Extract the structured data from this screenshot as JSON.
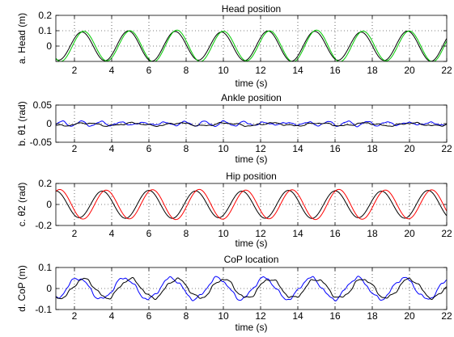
{
  "chart_data": [
    {
      "type": "line",
      "title": "Head position",
      "xlabel": "time (s)",
      "ylabel": "a. Head (m)",
      "xlim": [
        1,
        22
      ],
      "ylim": [
        -0.1,
        0.2
      ],
      "xticks": [
        2,
        4,
        6,
        8,
        10,
        12,
        14,
        16,
        18,
        20,
        22
      ],
      "yticks": [
        -0.1,
        0,
        0.1,
        0.2
      ],
      "ytick_labels": [
        "",
        "0",
        "0.1",
        "0.2"
      ],
      "grid": "dotted",
      "series": [
        {
          "color": "#000000",
          "style": "sine",
          "amplitude": 0.095,
          "period": 2.5,
          "peak_time": 2.4,
          "offset": 0.0
        },
        {
          "color": "#00cc00",
          "style": "sine",
          "amplitude": 0.1,
          "period": 2.5,
          "peak_time": 2.5,
          "offset": 0.0
        }
      ]
    },
    {
      "type": "line",
      "title": "Ankle position",
      "xlabel": "time (s)",
      "ylabel": "b. θ1 (rad)",
      "xlim": [
        1,
        22
      ],
      "ylim": [
        -0.05,
        0.05
      ],
      "xticks": [
        2,
        4,
        6,
        8,
        10,
        12,
        14,
        16,
        18,
        20,
        22
      ],
      "yticks": [
        -0.05,
        0,
        0.05
      ],
      "ytick_labels": [
        "-0.05",
        "0",
        "0.05"
      ],
      "grid": "dotted",
      "series": [
        {
          "color": "#0000ff",
          "style": "noise",
          "amplitude": 0.008,
          "period": 1.1,
          "peak_time": 1.0,
          "offset": 0.0
        },
        {
          "color": "#000000",
          "style": "noise",
          "amplitude": 0.006,
          "period": 2.5,
          "peak_time": 2.0,
          "offset": -0.002
        }
      ]
    },
    {
      "type": "line",
      "title": "Hip position",
      "xlabel": "time (s)",
      "ylabel": "c. θ2 (rad)",
      "xlim": [
        1,
        22
      ],
      "ylim": [
        -0.2,
        0.2
      ],
      "xticks": [
        2,
        4,
        6,
        8,
        10,
        12,
        14,
        16,
        18,
        20,
        22
      ],
      "yticks": [
        -0.2,
        0,
        0.2
      ],
      "ytick_labels": [
        "-0.2",
        "0",
        "0.2"
      ],
      "grid": "dotted",
      "series": [
        {
          "color": "#000000",
          "style": "sine",
          "amplitude": 0.13,
          "period": 2.5,
          "peak_time": 3.5,
          "offset": 0.0
        },
        {
          "color": "#ff0000",
          "style": "sine",
          "amplitude": 0.14,
          "period": 2.5,
          "peak_time": 3.7,
          "offset": 0.0
        }
      ]
    },
    {
      "type": "line",
      "title": "CoP location",
      "xlabel": "time (s)",
      "ylabel": "d. CoP (m)",
      "xlim": [
        1,
        22
      ],
      "ylim": [
        -0.1,
        0.1
      ],
      "xticks": [
        2,
        4,
        6,
        8,
        10,
        12,
        14,
        16,
        18,
        20,
        22
      ],
      "yticks": [
        -0.1,
        0,
        0.1
      ],
      "ytick_labels": [
        "-0.1",
        "0",
        "0.1"
      ],
      "grid": "dotted",
      "series": [
        {
          "color": "#0000ff",
          "style": "sine-noisy",
          "amplitude": 0.05,
          "period": 2.5,
          "peak_time": 2.2,
          "offset": 0.0
        },
        {
          "color": "#000000",
          "style": "sine-noisy",
          "amplitude": 0.045,
          "period": 2.5,
          "peak_time": 2.5,
          "offset": 0.0
        }
      ]
    }
  ]
}
